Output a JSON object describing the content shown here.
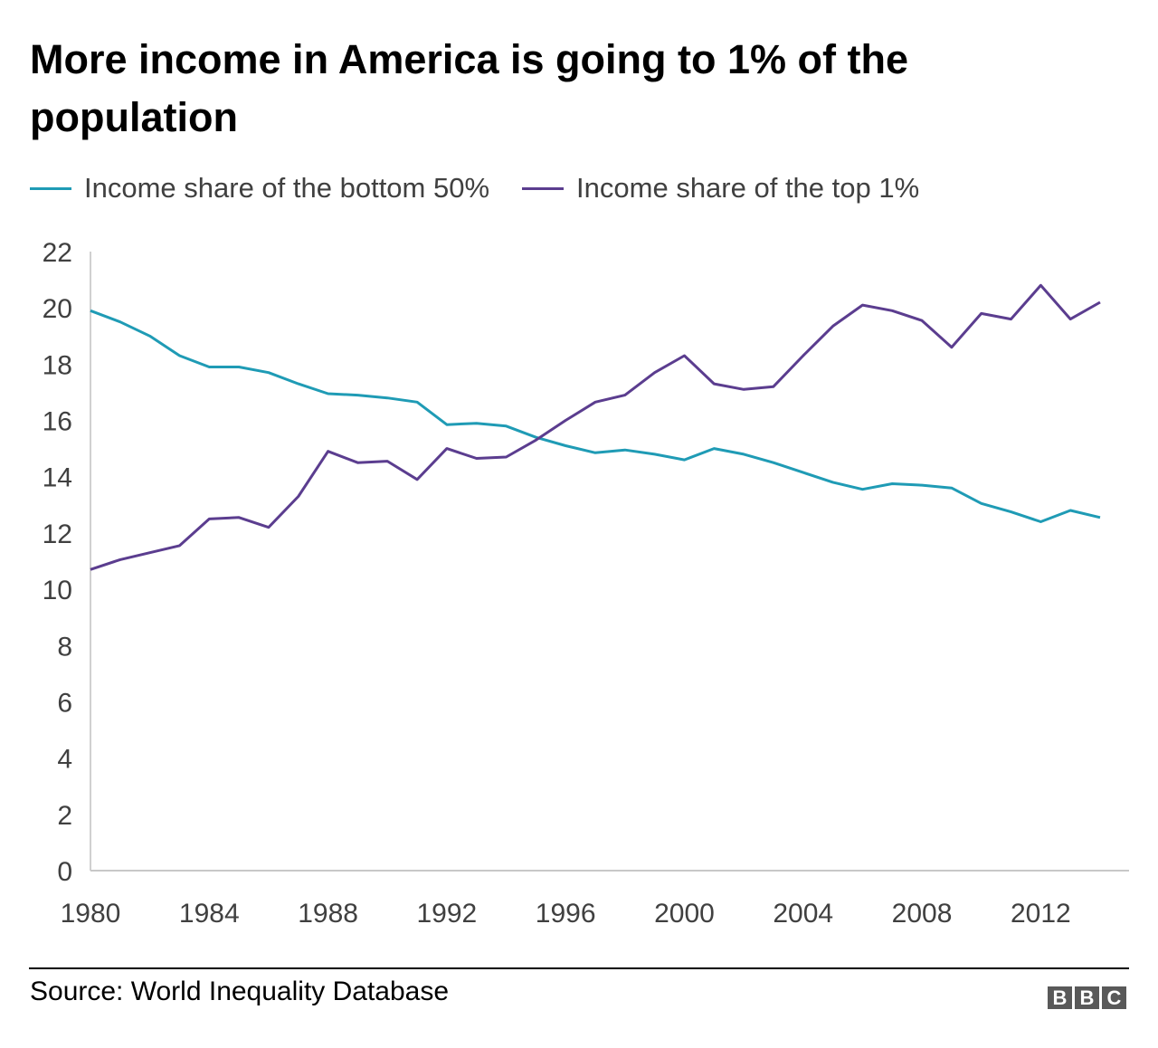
{
  "chart_data": {
    "type": "line",
    "title": "More income in America is going to 1% of the population",
    "xlabel": "",
    "ylabel": "",
    "x": [
      1980,
      1981,
      1982,
      1983,
      1984,
      1985,
      1986,
      1987,
      1988,
      1989,
      1990,
      1991,
      1992,
      1993,
      1994,
      1995,
      1996,
      1997,
      1998,
      1999,
      2000,
      2001,
      2002,
      2003,
      2004,
      2005,
      2006,
      2007,
      2008,
      2009,
      2010,
      2011,
      2012,
      2013,
      2014
    ],
    "series": [
      {
        "name": "Income share of the bottom 50%",
        "color": "#1f9bb5",
        "values": [
          19.9,
          19.5,
          19.0,
          18.3,
          17.9,
          17.9,
          17.7,
          17.3,
          16.95,
          16.9,
          16.8,
          16.65,
          15.85,
          15.9,
          15.8,
          15.4,
          15.1,
          14.85,
          14.95,
          14.8,
          14.6,
          15.0,
          14.8,
          14.5,
          14.15,
          13.8,
          13.55,
          13.75,
          13.7,
          13.6,
          13.05,
          12.75,
          12.4,
          12.8,
          12.55
        ]
      },
      {
        "name": "Income share of the top 1%",
        "color": "#5b3d8f",
        "values": [
          10.7,
          11.05,
          11.3,
          11.55,
          12.5,
          12.55,
          12.2,
          13.3,
          14.9,
          14.5,
          14.55,
          13.9,
          15.0,
          14.65,
          14.7,
          15.3,
          16.0,
          16.65,
          16.9,
          17.7,
          18.3,
          17.3,
          17.1,
          17.2,
          18.3,
          19.35,
          20.1,
          19.9,
          19.55,
          18.6,
          19.8,
          19.6,
          20.8,
          19.6,
          20.2
        ]
      }
    ],
    "ylim": [
      0,
      22
    ],
    "yticks": [
      "0",
      "2",
      "4",
      "6",
      "8",
      "10",
      "12",
      "14",
      "16",
      "18",
      "20",
      "22"
    ],
    "xticks": [
      "1980",
      "1984",
      "1988",
      "1992",
      "1996",
      "2000",
      "2004",
      "2008",
      "2012"
    ],
    "grid": false,
    "legend_placement": "top-left"
  },
  "footer": {
    "source": "Source: World Inequality Database",
    "logo": "BBC"
  }
}
